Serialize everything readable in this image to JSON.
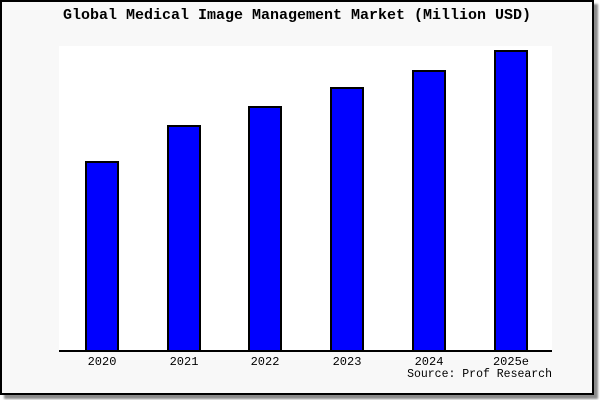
{
  "chart_data": {
    "type": "bar",
    "title": "Global Medical Image Management Market (Million USD)",
    "categories": [
      "2020",
      "2021",
      "2022",
      "2023",
      "2024",
      "2025e"
    ],
    "values": [
      63.0,
      75.1,
      81.5,
      87.8,
      93.6,
      100
    ],
    "values_note": "y-axis has no tick labels or gridlines in the image; values are relative bar heights normalized so 2025e = 100",
    "xlabel": "",
    "ylabel": "",
    "ylim": [
      0,
      101.5
    ],
    "grid": false,
    "legend_position": "none",
    "source_note": "Source: Prof Research",
    "colors": {
      "bar_fill": "#0000ff",
      "bar_border": "#000000",
      "plot_background": "#ffffff",
      "panel_background": "#f8f8f8",
      "panel_border": "#000000",
      "text": "#000000"
    }
  }
}
